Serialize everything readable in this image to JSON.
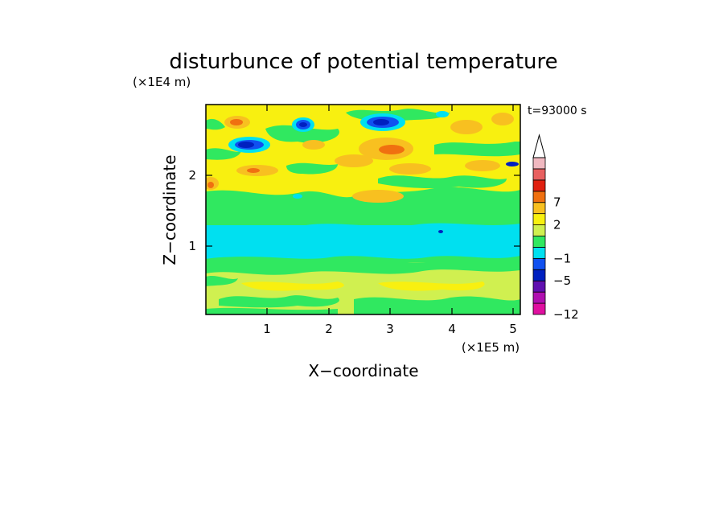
{
  "chart_data": {
    "type": "heatmap",
    "title": "disturbunce of potential temperature",
    "time_label": "t=93000 s",
    "xlabel": "X−coordinate",
    "ylabel": "Z−coordinate",
    "x_unit": "(×1E5 m)",
    "y_unit": "(×1E4 m)",
    "xlim": [
      0,
      5.15
    ],
    "ylim": [
      0,
      2.95
    ],
    "x_ticks": [
      1,
      2,
      3,
      4,
      5
    ],
    "y_ticks": [
      1,
      2
    ],
    "colorbar": {
      "levels": [
        -12,
        -10,
        -8,
        -5,
        -3,
        -1,
        0,
        1,
        2,
        4,
        7,
        9,
        11,
        13
      ],
      "tick_labels": [
        "−12",
        "−5",
        "−1",
        "2",
        "7"
      ],
      "tick_values": [
        -12,
        -5,
        -1,
        2,
        7
      ],
      "colors": [
        "#e010a0",
        "#b010b0",
        "#6010b0",
        "#0020c0",
        "#1050f0",
        "#00e0f0",
        "#30e860",
        "#d0f050",
        "#f8f010",
        "#f8c020",
        "#f07010",
        "#e02010",
        "#e86060",
        "#f0b8c0"
      ],
      "extend": "max"
    },
    "field_description": {
      "bands": [
        {
          "z_range": [
            0.0,
            0.75
          ],
          "value": 0.5,
          "class": "yellow-green"
        },
        {
          "z_range": [
            0.75,
            0.9
          ],
          "value": -0.5,
          "class": "green"
        },
        {
          "z_range": [
            0.9,
            1.35
          ],
          "value": -1.5,
          "class": "cyan"
        },
        {
          "z_range": [
            1.35,
            1.55
          ],
          "value": -0.5,
          "class": "green"
        },
        {
          "z_range": [
            1.55,
            2.95
          ],
          "value": 1.0,
          "class": "yellow with orange and blue cells"
        }
      ]
    }
  }
}
